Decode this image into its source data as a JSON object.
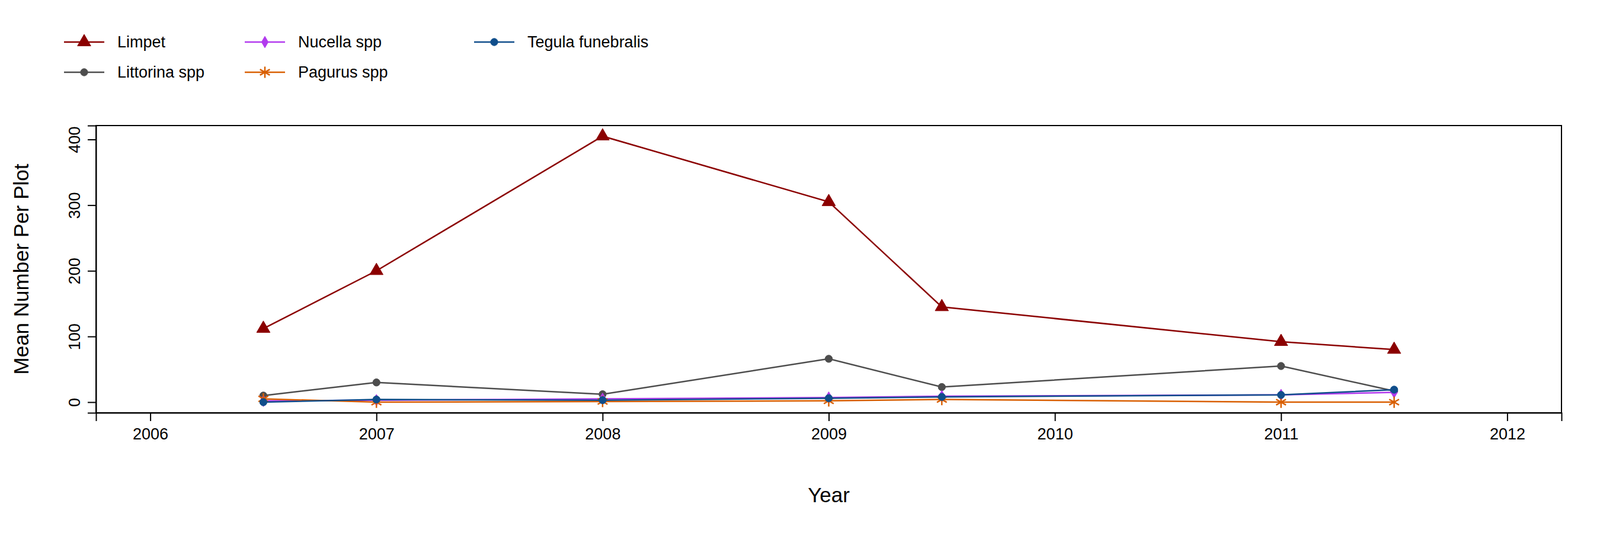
{
  "chart_data": {
    "type": "line",
    "x_label": "Year",
    "y_label": "Mean Number Per Plot",
    "x": [
      2006.5,
      2007,
      2008,
      2009,
      2009.5,
      2011,
      2011.5
    ],
    "xlim": [
      2005.76,
      2012.24
    ],
    "xticks": [
      2006,
      2007,
      2008,
      2009,
      2010,
      2011,
      2012
    ],
    "ylim": [
      -16.2,
      421.2
    ],
    "yticks": [
      0,
      100,
      200,
      300,
      400
    ],
    "grid": false,
    "legend": "top-left",
    "series": [
      {
        "name": "Limpet",
        "color": "#8b0000",
        "marker": "triangle",
        "values": [
          112,
          200,
          405,
          305,
          145,
          92,
          80
        ]
      },
      {
        "name": "Littorina spp",
        "color": "#4d4d4d",
        "marker": "circle",
        "values": [
          10,
          30,
          12,
          66,
          23,
          55,
          17
        ]
      },
      {
        "name": "Nucella spp",
        "color": "#b23aee",
        "marker": "diamond",
        "values": [
          2,
          3,
          5,
          7,
          9,
          11,
          15
        ]
      },
      {
        "name": "Pagurus spp",
        "color": "#d95f02",
        "marker": "asterisk",
        "values": [
          5,
          0,
          1,
          2,
          4,
          0,
          0
        ]
      },
      {
        "name": "Tegula funebralis",
        "color": "#104e8b",
        "marker": "circle",
        "values": [
          0,
          4,
          3,
          6,
          8,
          11,
          19
        ]
      }
    ]
  }
}
